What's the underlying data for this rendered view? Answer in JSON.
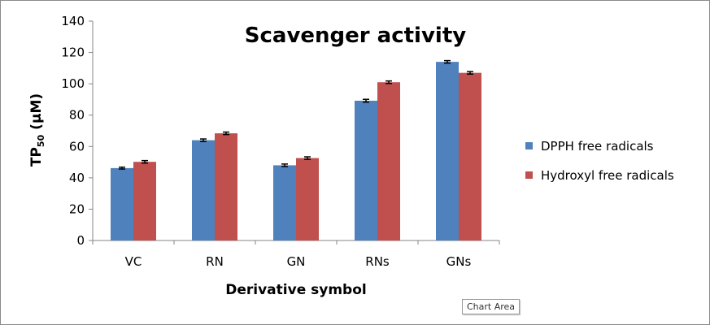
{
  "chart_data": {
    "type": "bar",
    "title": "Scavenger activity",
    "xlabel": "Derivative symbol",
    "ylabel": {
      "main": "TP",
      "sub": "50",
      "rest": " (μM)"
    },
    "categories": [
      "VC",
      "RN",
      "GN",
      "RNs",
      "GNs"
    ],
    "ylim": [
      0,
      140
    ],
    "yticks": [
      0,
      20,
      40,
      60,
      80,
      100,
      120,
      140
    ],
    "grid": false,
    "legend_position": "right",
    "series": [
      {
        "name": "DPPH free radicals",
        "color": "#4f81bd",
        "values": [
          46.2,
          64.0,
          48.0,
          89.2,
          114.0
        ],
        "errors": [
          0.6,
          0.8,
          0.8,
          0.9,
          0.8
        ]
      },
      {
        "name": "Hydroxyl free radicals",
        "color": "#c0504d",
        "values": [
          50.2,
          68.4,
          52.6,
          101.0,
          107.0
        ],
        "errors": [
          0.8,
          0.8,
          0.8,
          0.8,
          0.8
        ]
      }
    ]
  },
  "tooltip": "Chart Area"
}
